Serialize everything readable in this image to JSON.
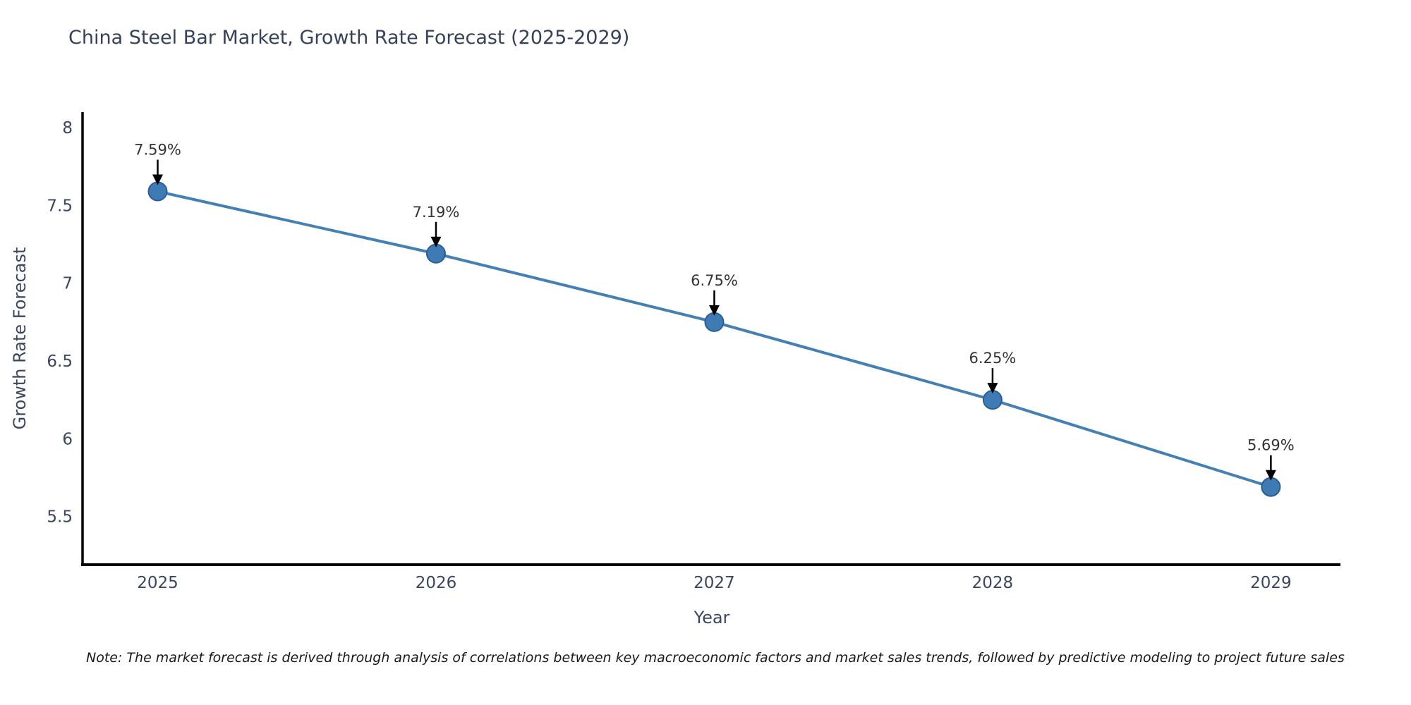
{
  "note": "Note: The market forecast is derived through analysis of correlations between key macroeconomic factors and market sales trends, followed by predictive modeling to project future sales",
  "chart_data": {
    "type": "line",
    "title": "China Steel Bar Market, Growth Rate Forecast (2025-2029)",
    "xlabel": "Year",
    "ylabel": "Growth Rate Forecast",
    "x": [
      2025,
      2026,
      2027,
      2028,
      2029
    ],
    "x_tick_labels": [
      "2025",
      "2026",
      "2027",
      "2028",
      "2029"
    ],
    "values": [
      7.59,
      7.19,
      6.75,
      6.25,
      5.69
    ],
    "point_labels": [
      "7.59%",
      "7.19%",
      "6.75%",
      "6.25%",
      "5.69%"
    ],
    "y_ticks": [
      8,
      7.5,
      7,
      6.5,
      6,
      5.5
    ],
    "y_tick_labels": [
      "8",
      "7.5",
      "7",
      "6.5",
      "6",
      "5.5"
    ],
    "ylim": [
      5.19,
      8.1
    ],
    "xlim": [
      2024.73,
      2029.25
    ],
    "grid": false,
    "legend": null,
    "colors": {
      "line": "#4580b4",
      "marker_fill": "#3e7ab3",
      "marker_edge": "#2c5f93",
      "axis": "#000000",
      "arrow": "#000000",
      "title_text": "#36425c",
      "tick_text": "#3b4660",
      "annotation_text": "#333333",
      "note_text": "#1a1a1a",
      "background": "#ffffff"
    }
  }
}
